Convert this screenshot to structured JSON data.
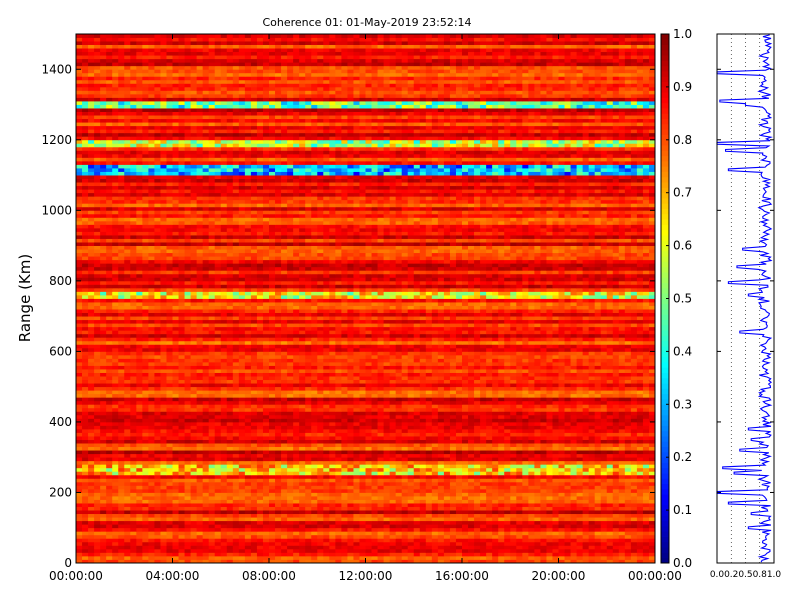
{
  "chart_data": [
    {
      "type": "heatmap",
      "title": "Coherence 01: 01-May-2019 23:52:14",
      "xlabel": "",
      "ylabel": "Range (Km)",
      "x_tick_labels": [
        "00:00:00",
        "04:00:00",
        "08:00:00",
        "12:00:00",
        "16:00:00",
        "20:00:00",
        "00:00:00"
      ],
      "x_hours": [
        0,
        4,
        8,
        12,
        16,
        20,
        24
      ],
      "xlim_hours": [
        0,
        24
      ],
      "ylim": [
        0,
        1500
      ],
      "y_ticks": [
        0,
        200,
        400,
        600,
        800,
        1000,
        1200,
        1400
      ],
      "y_tick_labels": [
        "0",
        "200",
        "400",
        "600",
        "800",
        "1000",
        "1200",
        "1400"
      ],
      "colorbar": {
        "range": [
          0,
          1
        ],
        "ticks": [
          0.0,
          0.1,
          0.2,
          0.3,
          0.4,
          0.5,
          0.6,
          0.7,
          0.8,
          0.9,
          1.0
        ],
        "tick_labels": [
          "0.0",
          "0.1",
          "0.2",
          "0.3",
          "0.4",
          "0.5",
          "0.6",
          "0.7",
          "0.8",
          "0.9",
          "1.0"
        ],
        "colormap": "jet"
      },
      "band_features": [
        {
          "range_km": [
            1290,
            1310
          ],
          "coherence": 0.45
        },
        {
          "range_km": [
            1180,
            1195
          ],
          "coherence": 0.55
        },
        {
          "range_km": [
            1105,
            1125
          ],
          "coherence": 0.3
        },
        {
          "range_km": [
            750,
            765
          ],
          "coherence": 0.6
        },
        {
          "range_km": [
            255,
            280
          ],
          "coherence": 0.65
        }
      ],
      "typical_coherence": 0.85
    },
    {
      "type": "line",
      "xlabel": "",
      "ylabel": "",
      "xlim": [
        0,
        1
      ],
      "x_tick_labels": [
        "0.0",
        "0.2",
        "0.5",
        "0.8",
        "1.0"
      ],
      "x_ticks": [
        0.0,
        0.25,
        0.5,
        0.75,
        1.0
      ],
      "ylim": [
        0,
        1500
      ],
      "grid": "dotted vertical",
      "line_color": "#0000ff",
      "dips": [
        {
          "range_km": 1390,
          "value": 0.0
        },
        {
          "range_km": 1310,
          "value": 0.05
        },
        {
          "range_km": 1300,
          "value": 0.5
        },
        {
          "range_km": 1190,
          "value": 0.0
        },
        {
          "range_km": 1170,
          "value": 0.15
        },
        {
          "range_km": 1115,
          "value": 0.2
        },
        {
          "range_km": 890,
          "value": 0.45
        },
        {
          "range_km": 840,
          "value": 0.35
        },
        {
          "range_km": 795,
          "value": 0.2
        },
        {
          "range_km": 760,
          "value": 0.55
        },
        {
          "range_km": 655,
          "value": 0.4
        },
        {
          "range_km": 380,
          "value": 0.55
        },
        {
          "range_km": 350,
          "value": 0.6
        },
        {
          "range_km": 320,
          "value": 0.4
        },
        {
          "range_km": 270,
          "value": 0.1
        },
        {
          "range_km": 255,
          "value": 0.3
        },
        {
          "range_km": 200,
          "value": 0.0
        },
        {
          "range_km": 170,
          "value": 0.2
        },
        {
          "range_km": 140,
          "value": 0.6
        },
        {
          "range_km": 100,
          "value": 0.55
        }
      ]
    }
  ],
  "colors": {
    "line": "#0000ff",
    "background": "#ffffff"
  }
}
